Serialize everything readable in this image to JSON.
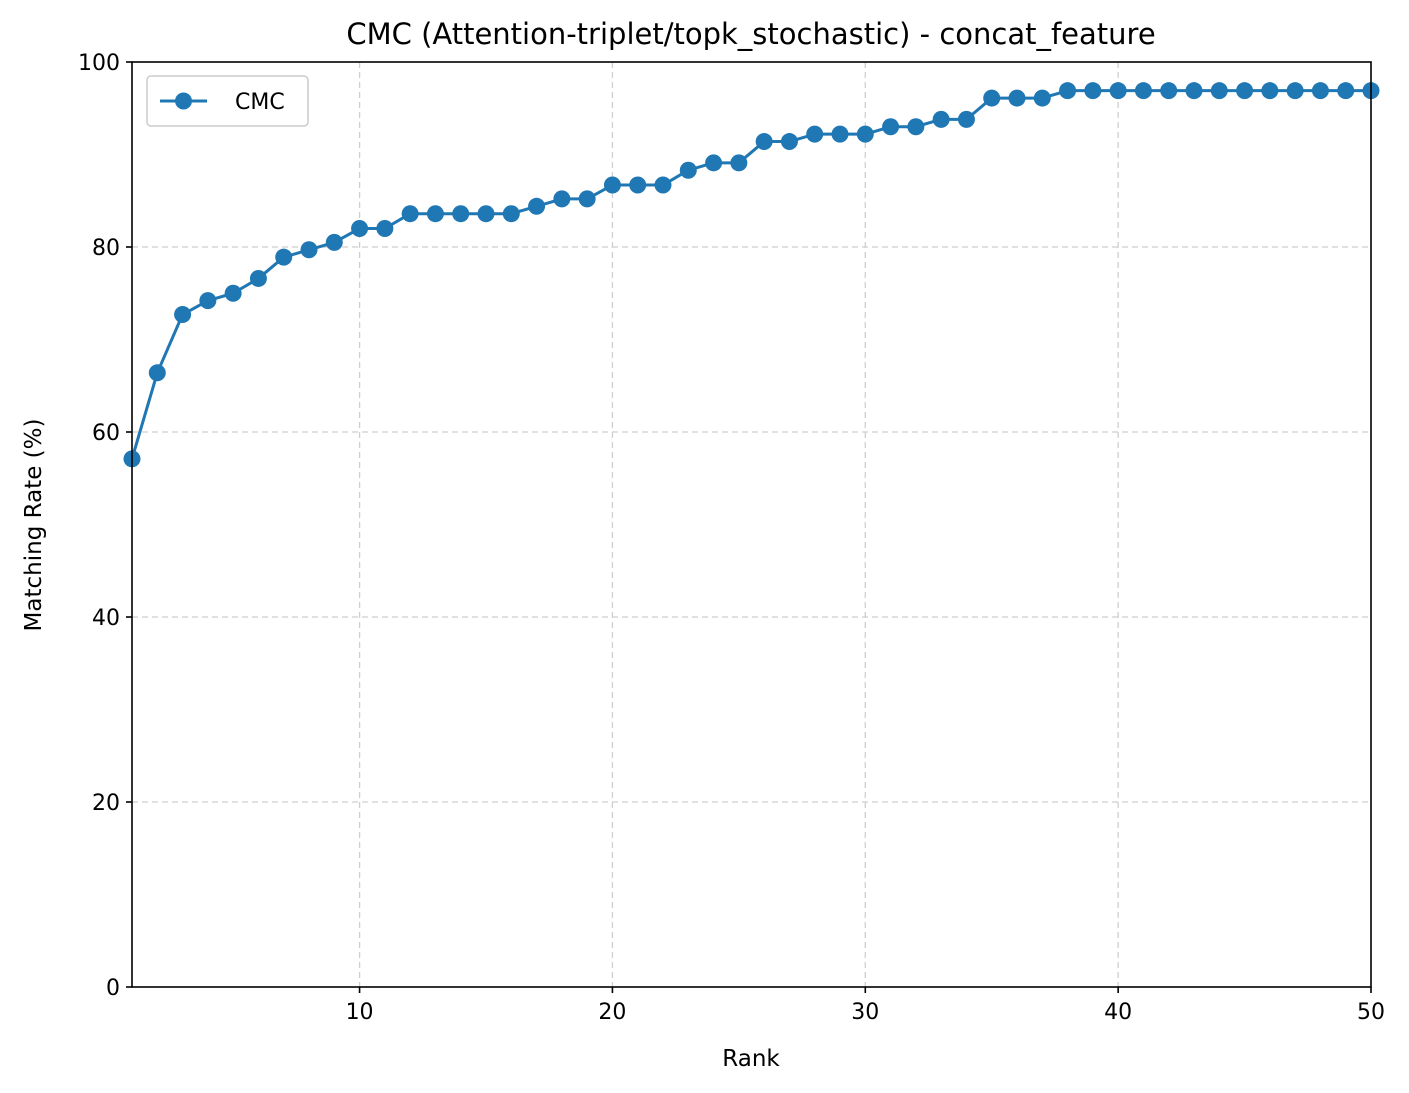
{
  "chart_data": {
    "type": "line",
    "title": "CMC (Attention-triplet/topk_stochastic) - concat_feature",
    "xlabel": "Rank",
    "ylabel": "Matching Rate (%)",
    "xlim": [
      1,
      50
    ],
    "ylim": [
      0,
      100
    ],
    "xticks": [
      10,
      20,
      30,
      40,
      50
    ],
    "yticks": [
      0,
      20,
      40,
      60,
      80,
      100
    ],
    "grid": true,
    "legend_position": "top-left",
    "series": [
      {
        "name": "CMC",
        "color": "#1f77b4",
        "marker": "circle",
        "x": [
          1,
          2,
          3,
          4,
          5,
          6,
          7,
          8,
          9,
          10,
          11,
          12,
          13,
          14,
          15,
          16,
          17,
          18,
          19,
          20,
          21,
          22,
          23,
          24,
          25,
          26,
          27,
          28,
          29,
          30,
          31,
          32,
          33,
          34,
          35,
          36,
          37,
          38,
          39,
          40,
          41,
          42,
          43,
          44,
          45,
          46,
          47,
          48,
          49,
          50
        ],
        "values": [
          57.1,
          66.4,
          72.7,
          74.2,
          75.0,
          76.6,
          78.9,
          79.7,
          80.5,
          82.0,
          82.0,
          83.6,
          83.6,
          83.6,
          83.6,
          83.6,
          84.4,
          85.2,
          85.2,
          86.7,
          86.7,
          86.7,
          88.3,
          89.1,
          89.1,
          91.4,
          91.4,
          92.2,
          92.2,
          92.2,
          93.0,
          93.0,
          93.8,
          93.8,
          96.1,
          96.1,
          96.1,
          96.9,
          96.9,
          96.9,
          96.9,
          96.9,
          96.9,
          96.9,
          96.9,
          96.9,
          96.9,
          96.9,
          96.9,
          96.9
        ]
      }
    ]
  }
}
